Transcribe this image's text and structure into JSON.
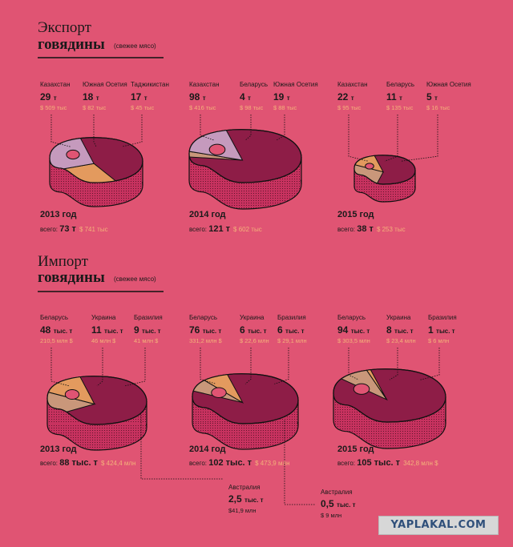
{
  "export": {
    "title": "Экспорт",
    "title2": "говядины",
    "subtitle": "(свежее мясо)",
    "years": [
      {
        "year": "2013 год",
        "total_label": "всего:",
        "total": "73 т",
        "total_money": "$ 741 тыс",
        "countries": [
          {
            "name": "Казахстан",
            "value": "29",
            "unit": "т",
            "money": "$ 509 тыс"
          },
          {
            "name": "Южная Осетия",
            "value": "18",
            "unit": "т",
            "money": "$ 82 тыс"
          },
          {
            "name": "Таджикистан",
            "value": "17",
            "unit": "т",
            "money": "$ 45 тыс"
          }
        ]
      },
      {
        "year": "2014 год",
        "total_label": "всего:",
        "total": "121 т",
        "total_money": "$ 602 тыс",
        "countries": [
          {
            "name": "Казахстан",
            "value": "98",
            "unit": "т",
            "money": "$ 416 тыс"
          },
          {
            "name": "Беларусь",
            "value": "4",
            "unit": "т",
            "money": "$ 98 тыс"
          },
          {
            "name": "Южная Осетия",
            "value": "19",
            "unit": "т",
            "money": "$ 88 тыс"
          }
        ]
      },
      {
        "year": "2015 год",
        "total_label": "всего:",
        "total": "38 т",
        "total_money": "$ 253 тыс",
        "countries": [
          {
            "name": "Казахстан",
            "value": "22",
            "unit": "т",
            "money": "$ 95 тыс"
          },
          {
            "name": "Беларусь",
            "value": "11",
            "unit": "т",
            "money": "$ 135 тыс"
          },
          {
            "name": "Южная Осетия",
            "value": "5",
            "unit": "т",
            "money": "$ 16 тыс"
          }
        ]
      }
    ]
  },
  "import": {
    "title": "Импорт",
    "title2": "говядины",
    "subtitle": "(свежее мясо)",
    "years": [
      {
        "year": "2013 год",
        "total_label": "всего:",
        "total": "88 тыс. т",
        "total_money": "$ 424,4 млн",
        "countries": [
          {
            "name": "Беларусь",
            "value": "48",
            "unit": "тыс. т",
            "money": "210,5 млн $"
          },
          {
            "name": "Украина",
            "value": "11",
            "unit": "тыс. т",
            "money": "46 млн $"
          },
          {
            "name": "Бразилия",
            "value": "9",
            "unit": "тыс. т",
            "money": "41 млн $"
          }
        ]
      },
      {
        "year": "2014 год",
        "total_label": "всего:",
        "total": "102 тыс. т",
        "total_money": "$ 473,9 млн",
        "countries": [
          {
            "name": "Беларусь",
            "value": "76",
            "unit": "тыс. т",
            "money": "331,2 млн $"
          },
          {
            "name": "Украина",
            "value": "6",
            "unit": "тыс. т",
            "money": "$ 22,6 млн"
          },
          {
            "name": "Бразилия",
            "value": "6",
            "unit": "тыс. т",
            "money": "$ 29,1 млн"
          }
        ]
      },
      {
        "year": "2015 год",
        "total_label": "всего:",
        "total": "105 тыс. т",
        "total_money": "342,8 млн $",
        "countries": [
          {
            "name": "Беларусь",
            "value": "94",
            "unit": "тыс. т",
            "money": "$ 303,5 млн"
          },
          {
            "name": "Украина",
            "value": "8",
            "unit": "тыс. т",
            "money": "$ 23,4 млн"
          },
          {
            "name": "Бразилия",
            "value": "1",
            "unit": "тыс. т",
            "money": "$ 6 млн"
          }
        ]
      }
    ],
    "australia": [
      {
        "name": "Австралия",
        "value": "2,5",
        "unit": "тыс. т",
        "money": "$41,9 млн"
      },
      {
        "name": "Австралия",
        "value": "0,5",
        "unit": "тыс. т",
        "money": "$ 9 млн"
      }
    ]
  },
  "colors": {
    "background": "#E05473",
    "steak_dark": "#8E1D47",
    "steak_side": "#C7325F",
    "orange": "#E39A5E",
    "tan": "#C9977A",
    "lilac": "#C59ABD"
  },
  "watermark": "YAPLAKAL.COM",
  "chart_data": {
    "type": "pie",
    "charts": [
      {
        "title": "Экспорт говядины 2013 год",
        "unit": "т",
        "categories": [
          "Казахстан",
          "Южная Осетия",
          "Таджикистан"
        ],
        "values": [
          29,
          18,
          17
        ],
        "total": 73
      },
      {
        "title": "Экспорт говядины 2014 год",
        "unit": "т",
        "categories": [
          "Казахстан",
          "Беларусь",
          "Южная Осетия"
        ],
        "values": [
          98,
          4,
          19
        ],
        "total": 121
      },
      {
        "title": "Экспорт говядины 2015 год",
        "unit": "т",
        "categories": [
          "Казахстан",
          "Беларусь",
          "Южная Осетия"
        ],
        "values": [
          22,
          11,
          5
        ],
        "total": 38
      },
      {
        "title": "Импорт говядины 2013 год",
        "unit": "тыс. т",
        "categories": [
          "Беларусь",
          "Украина",
          "Бразилия"
        ],
        "values": [
          48,
          11,
          9
        ],
        "total": 88
      },
      {
        "title": "Импорт говядины 2014 год",
        "unit": "тыс. т",
        "categories": [
          "Беларусь",
          "Украина",
          "Бразилия"
        ],
        "values": [
          76,
          6,
          6
        ],
        "total": 102
      },
      {
        "title": "Импорт говядины 2015 год",
        "unit": "тыс. т",
        "categories": [
          "Беларусь",
          "Украина",
          "Бразилия"
        ],
        "values": [
          94,
          8,
          1
        ],
        "total": 105
      }
    ]
  }
}
